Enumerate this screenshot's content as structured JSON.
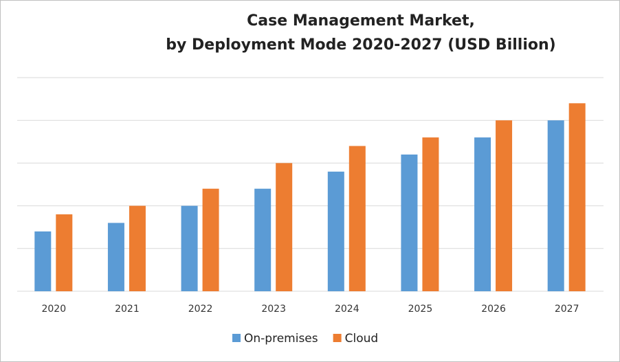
{
  "chart_data": {
    "type": "bar",
    "title": [
      "Case Management Market,",
      "by Deployment Mode 2020-2027 (USD Billion)"
    ],
    "categories": [
      "2020",
      "2021",
      "2022",
      "2023",
      "2024",
      "2025",
      "2026",
      "2027"
    ],
    "series": [
      {
        "name": "On-premises",
        "color": "#5b9bd5",
        "values": [
          1.4,
          1.6,
          2.0,
          2.4,
          2.8,
          3.2,
          3.6,
          4.0
        ]
      },
      {
        "name": "Cloud",
        "color": "#ed7d31",
        "values": [
          1.8,
          2.0,
          2.4,
          3.0,
          3.4,
          3.6,
          4.0,
          4.4
        ]
      }
    ],
    "ylim": [
      0,
      5
    ],
    "yticks": [
      0,
      1,
      2,
      3,
      4,
      5
    ],
    "grid": true,
    "legend": "bottom"
  }
}
